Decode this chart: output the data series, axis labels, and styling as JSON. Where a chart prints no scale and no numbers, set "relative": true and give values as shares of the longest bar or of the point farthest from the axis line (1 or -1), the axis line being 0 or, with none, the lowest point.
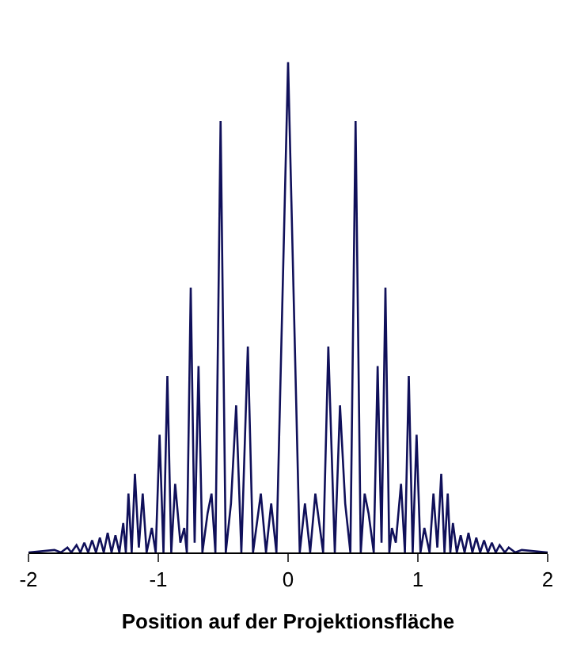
{
  "chart_data": {
    "type": "line",
    "xlabel": "Position auf der Projektionsfläche",
    "relative": true,
    "xlim": [
      -2,
      2
    ],
    "xticks": [
      -2,
      -1,
      0,
      1,
      2
    ],
    "marker": "none",
    "line_style": "solid",
    "series": [
      {
        "color": "#10105a",
        "x": [
          -2.0,
          -1.8,
          -1.75,
          -1.7,
          -1.67,
          -1.63,
          -1.6,
          -1.57,
          -1.54,
          -1.51,
          -1.48,
          -1.45,
          -1.42,
          -1.39,
          -1.36,
          -1.33,
          -1.3,
          -1.27,
          -1.25,
          -1.23,
          -1.205,
          -1.18,
          -1.15,
          -1.12,
          -1.09,
          -1.05,
          -1.02,
          -0.99,
          -0.96,
          -0.93,
          -0.9,
          -0.87,
          -0.83,
          -0.8,
          -0.78,
          -0.75,
          -0.72,
          -0.69,
          -0.66,
          -0.62,
          -0.59,
          -0.56,
          -0.52,
          -0.48,
          -0.44,
          -0.4,
          -0.36,
          -0.31,
          -0.27,
          -0.21,
          -0.17,
          -0.13,
          -0.09,
          0,
          0.09,
          0.13,
          0.17,
          0.21,
          0.27,
          0.31,
          0.36,
          0.4,
          0.44,
          0.48,
          0.52,
          0.56,
          0.59,
          0.62,
          0.66,
          0.69,
          0.72,
          0.75,
          0.78,
          0.8,
          0.83,
          0.87,
          0.9,
          0.93,
          0.96,
          0.99,
          1.02,
          1.05,
          1.09,
          1.12,
          1.15,
          1.18,
          1.205,
          1.23,
          1.25,
          1.27,
          1.3,
          1.33,
          1.36,
          1.39,
          1.42,
          1.45,
          1.48,
          1.51,
          1.54,
          1.57,
          1.6,
          1.63,
          1.67,
          1.7,
          1.75,
          1.8,
          2.0
        ],
        "values": [
          0,
          0.005,
          0,
          0.01,
          0,
          0.015,
          0,
          0.02,
          0,
          0.025,
          0,
          0.03,
          0,
          0.04,
          0,
          0.035,
          0,
          0.06,
          0,
          0.12,
          0,
          0.16,
          0.01,
          0.12,
          0,
          0.05,
          0,
          0.24,
          0,
          0.36,
          0,
          0.14,
          0.02,
          0.05,
          0,
          0.54,
          0.02,
          0.38,
          0,
          0.08,
          0.12,
          0,
          0.88,
          0,
          0.1,
          0.3,
          0,
          0.42,
          0,
          0.12,
          0,
          0.1,
          0,
          1.0,
          0,
          0.1,
          0,
          0.12,
          0,
          0.42,
          0,
          0.3,
          0.1,
          0,
          0.88,
          0,
          0.12,
          0.08,
          0,
          0.38,
          0.02,
          0.54,
          0,
          0.05,
          0.02,
          0.14,
          0,
          0.36,
          0,
          0.24,
          0,
          0.05,
          0,
          0.12,
          0.01,
          0.16,
          0,
          0.12,
          0,
          0.06,
          0,
          0.035,
          0,
          0.04,
          0,
          0.03,
          0,
          0.025,
          0,
          0.02,
          0,
          0.015,
          0,
          0.01,
          0,
          0.005,
          0
        ]
      }
    ]
  }
}
